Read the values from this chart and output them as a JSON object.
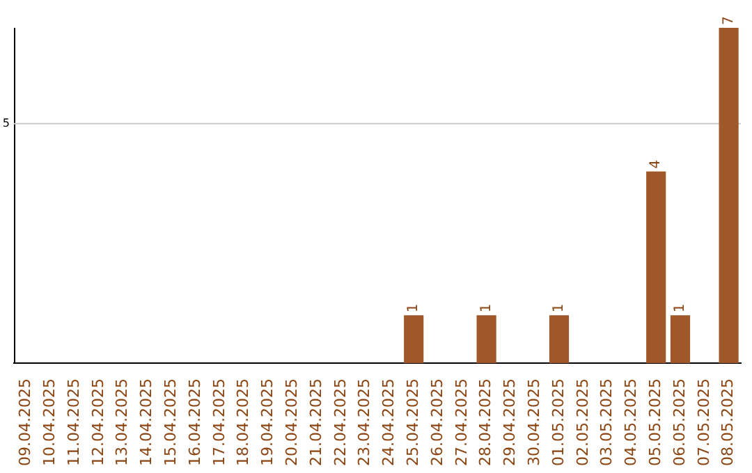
{
  "chart_data": {
    "type": "bar",
    "categories": [
      "09.04.2025",
      "10.04.2025",
      "11.04.2025",
      "12.04.2025",
      "13.04.2025",
      "14.04.2025",
      "15.04.2025",
      "16.04.2025",
      "17.04.2025",
      "18.04.2025",
      "19.04.2025",
      "20.04.2025",
      "21.04.2025",
      "22.04.2025",
      "23.04.2025",
      "24.04.2025",
      "25.04.2025",
      "26.04.2025",
      "27.04.2025",
      "28.04.2025",
      "29.04.2025",
      "30.04.2025",
      "01.05.2025",
      "02.05.2025",
      "03.05.2025",
      "04.05.2025",
      "05.05.2025",
      "06.05.2025",
      "07.05.2025",
      "08.05.2025"
    ],
    "values": [
      null,
      null,
      null,
      null,
      null,
      null,
      null,
      null,
      null,
      null,
      null,
      null,
      null,
      null,
      null,
      null,
      1,
      null,
      null,
      1,
      null,
      null,
      1,
      null,
      null,
      null,
      4,
      1,
      null,
      7
    ],
    "ylim": [
      0,
      7
    ],
    "value_labels": [
      null,
      null,
      null,
      null,
      null,
      null,
      null,
      null,
      null,
      null,
      null,
      null,
      null,
      null,
      null,
      null,
      "1",
      null,
      null,
      "1",
      null,
      null,
      "1",
      null,
      null,
      null,
      "4",
      "1",
      null,
      "7"
    ],
    "color": "#a0582b",
    "ref_lines": [
      {
        "axis": "y",
        "value": 5,
        "label": "5",
        "color": "#cccccc"
      }
    ],
    "legend": false
  }
}
